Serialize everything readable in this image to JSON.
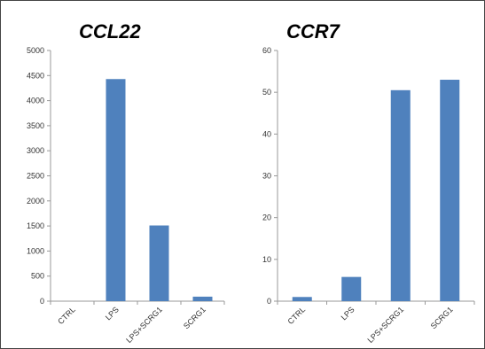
{
  "chart_data": [
    {
      "type": "bar",
      "title": "CCL22",
      "categories": [
        "CTRL",
        "LPS",
        "LPS+SCRG1",
        "SCRG1"
      ],
      "values": [
        0,
        4430,
        1510,
        90
      ],
      "ylim": [
        0,
        5000
      ],
      "yticks": [
        0,
        500,
        1000,
        1500,
        2000,
        2500,
        3000,
        3500,
        4000,
        4500,
        5000
      ],
      "bar_color": "#4F81BD",
      "grid": false
    },
    {
      "type": "bar",
      "title": "CCR7",
      "categories": [
        "CTRL",
        "LPS",
        "LPS+SCRG1",
        "SCRG1"
      ],
      "values": [
        1,
        5.8,
        50.5,
        53
      ],
      "ylim": [
        0,
        60
      ],
      "yticks": [
        0,
        10,
        20,
        30,
        40,
        50,
        60
      ],
      "bar_color": "#4F81BD",
      "grid": false
    }
  ]
}
